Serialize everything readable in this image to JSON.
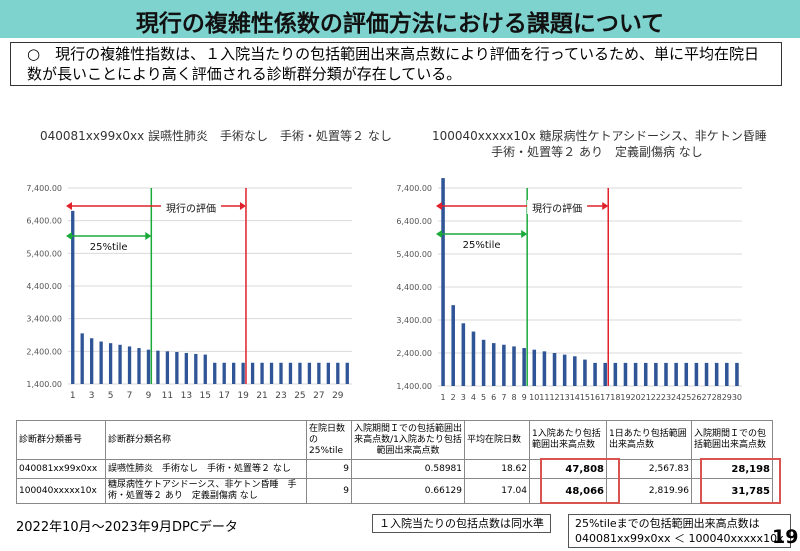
{
  "title": "現行の複雑性係数の評価方法における課題について",
  "note": "○　現行の複雑性指数は、１入院当たりの包括範囲出来高点数により評価を行っているため、単に平均在院日数が長いことにより高く評価される診断群分類が存在している。",
  "charts": [
    {
      "title_lines": [
        "040081xx99x0xx 誤嚥性肺炎　手術なし　手術・処置等２ なし"
      ]
    },
    {
      "title_lines": [
        "100040xxxxx10x 糖尿病性ケトアシドーシス、非ケトン昏睡",
        "手術・処置等２ あり　定義副傷病 なし"
      ]
    }
  ],
  "chart_data": [
    {
      "type": "bar",
      "title": "040081xx99x0xx 誤嚥性肺炎　手術なし　手術・処置等２ なし",
      "ylim": [
        1400,
        7400
      ],
      "yticks": [
        "1,400.00",
        "2,400.00",
        "3,400.00",
        "4,400.00",
        "5,400.00",
        "6,400.00",
        "7,400.00"
      ],
      "ytick_values": [
        1400,
        2400,
        3400,
        4400,
        5400,
        6400,
        7400
      ],
      "x": [
        1,
        2,
        3,
        4,
        5,
        6,
        7,
        8,
        9,
        10,
        11,
        12,
        13,
        14,
        15,
        16,
        17,
        18,
        19,
        20,
        21,
        22,
        23,
        24,
        25,
        26,
        27,
        28,
        29,
        30
      ],
      "xtick_labels": [
        "1",
        "3",
        "5",
        "7",
        "9",
        "11",
        "13",
        "15",
        "17",
        "19",
        "21",
        "23",
        "25",
        "27",
        "29"
      ],
      "values": [
        6700,
        2950,
        2800,
        2700,
        2650,
        2600,
        2550,
        2500,
        2450,
        2420,
        2400,
        2380,
        2350,
        2320,
        2300,
        2050,
        2050,
        2050,
        2050,
        2050,
        2050,
        2050,
        2050,
        2050,
        2050,
        2050,
        2050,
        2050,
        2050,
        2050
      ],
      "annotations": {
        "p25_day": 9,
        "period_day": 19,
        "p25_label": "25%tile",
        "period_label": "現行の評価"
      },
      "grid": true,
      "color": "#2f5597"
    },
    {
      "type": "bar",
      "title": "100040xxxxx10x 糖尿病性ケトアシドーシス、非ケトン昏睡 手術・処置等２ あり　定義副傷病 なし",
      "ylim": [
        1400,
        7400
      ],
      "yticks": [
        "1,400.00",
        "2,400.00",
        "3,400.00",
        "4,400.00",
        "5,400.00",
        "6,400.00",
        "7,400.00"
      ],
      "ytick_values": [
        1400,
        2400,
        3400,
        4400,
        5400,
        6400,
        7400
      ],
      "x": [
        1,
        2,
        3,
        4,
        5,
        6,
        7,
        8,
        9,
        10,
        11,
        12,
        13,
        14,
        15,
        16,
        17,
        18,
        19,
        20,
        21,
        22,
        23,
        24,
        25,
        26,
        27,
        28,
        29,
        30
      ],
      "xtick_labels": [
        "1",
        "2",
        "3",
        "4",
        "5",
        "6",
        "7",
        "8",
        "9",
        "10",
        "11",
        "12",
        "13",
        "14",
        "15",
        "16",
        "17",
        "18",
        "19",
        "20",
        "21",
        "22",
        "23",
        "24",
        "25",
        "26",
        "27",
        "28",
        "29",
        "30"
      ],
      "values": [
        7700,
        3850,
        3300,
        3050,
        2800,
        2700,
        2650,
        2600,
        2550,
        2500,
        2450,
        2400,
        2350,
        2300,
        2200,
        2100,
        2100,
        2100,
        2100,
        2100,
        2100,
        2100,
        2100,
        2100,
        2100,
        2100,
        2100,
        2100,
        2100,
        2100
      ],
      "annotations": {
        "p25_day": 9,
        "period_day": 17,
        "p25_label": "25%tile",
        "period_label": "現行の評価"
      },
      "grid": true,
      "color": "#2f5597"
    }
  ],
  "table": {
    "headers": [
      "診断群分類番号",
      "診断群分類名称",
      "在院日数の25%tile",
      "入院期間Ｉでの包括範囲出来高点数/1入院あたり包括範囲出来高点数",
      "平均在院日数",
      "1入院あたり包括範囲出来高点数",
      "1日あたり包括範囲出来高点数",
      "入院期間Ｉでの包括範囲出来高点数"
    ],
    "rows": [
      [
        "040081xx99x0xx",
        "誤嚥性肺炎　手術なし　手術・処置等２ なし",
        "9",
        "0.58981",
        "18.62",
        "47,808",
        "2,567.83",
        "28,198"
      ],
      [
        "100040xxxxx10x",
        "糖尿病性ケトアシドーシス、非ケトン昏睡　手術・処置等２ あり　定義副傷病 なし",
        "9",
        "0.66129",
        "17.04",
        "48,066",
        "2,819.96",
        "31,785"
      ]
    ]
  },
  "footnote": "2022年10月～2023年9月DPCデータ",
  "callout1": "１入院当たりの包括点数は同水準",
  "callout2_lines": [
    "25%tileまでの包括範囲出来高点数は",
    "040081xx99x0xx ＜ 100040xxxxx10x"
  ],
  "page_number": "19",
  "colors": {
    "title_bar": "#7fd3cf",
    "bar": "#2f5597",
    "p25_line": "#1aaa3a",
    "period_line": "#e0202a",
    "highlight_border": "#d9534f"
  }
}
